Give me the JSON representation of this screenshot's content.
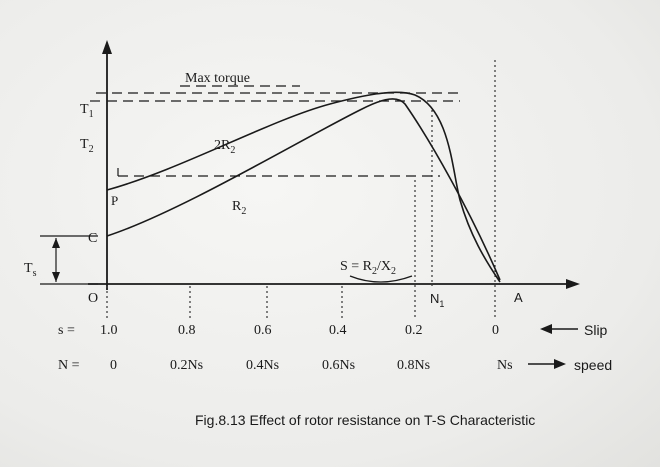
{
  "labels": {
    "max_torque": "Max torque",
    "t1": "T",
    "t1_sub": "1",
    "t2": "T",
    "t2_sub": "2",
    "ts": "T",
    "ts_sub": "s",
    "c": "C",
    "p": "P",
    "o": "O",
    "a": "A",
    "n1": "N",
    "n1_sub": "1",
    "curve_2r2": "2R",
    "curve_2r2_sub": "2",
    "curve_r2": "R",
    "curve_r2_sub": "2",
    "s_eq": "S = R",
    "s_eq_sub1": "2",
    "s_eq_mid": "/X",
    "s_eq_sub2": "2"
  },
  "slip_row": {
    "prefix": "s =",
    "values": [
      "1.0",
      "0.8",
      "0.6",
      "0.4",
      "0.2",
      "0"
    ],
    "label": "Slip"
  },
  "speed_row": {
    "prefix": "N =",
    "values": [
      "0",
      "0.2Ns",
      "0.4Ns",
      "0.6Ns",
      "0.8Ns",
      "Ns"
    ],
    "label": "speed"
  },
  "caption": "Fig.8.13  Effect of rotor resistance on T-S Characteristic"
}
